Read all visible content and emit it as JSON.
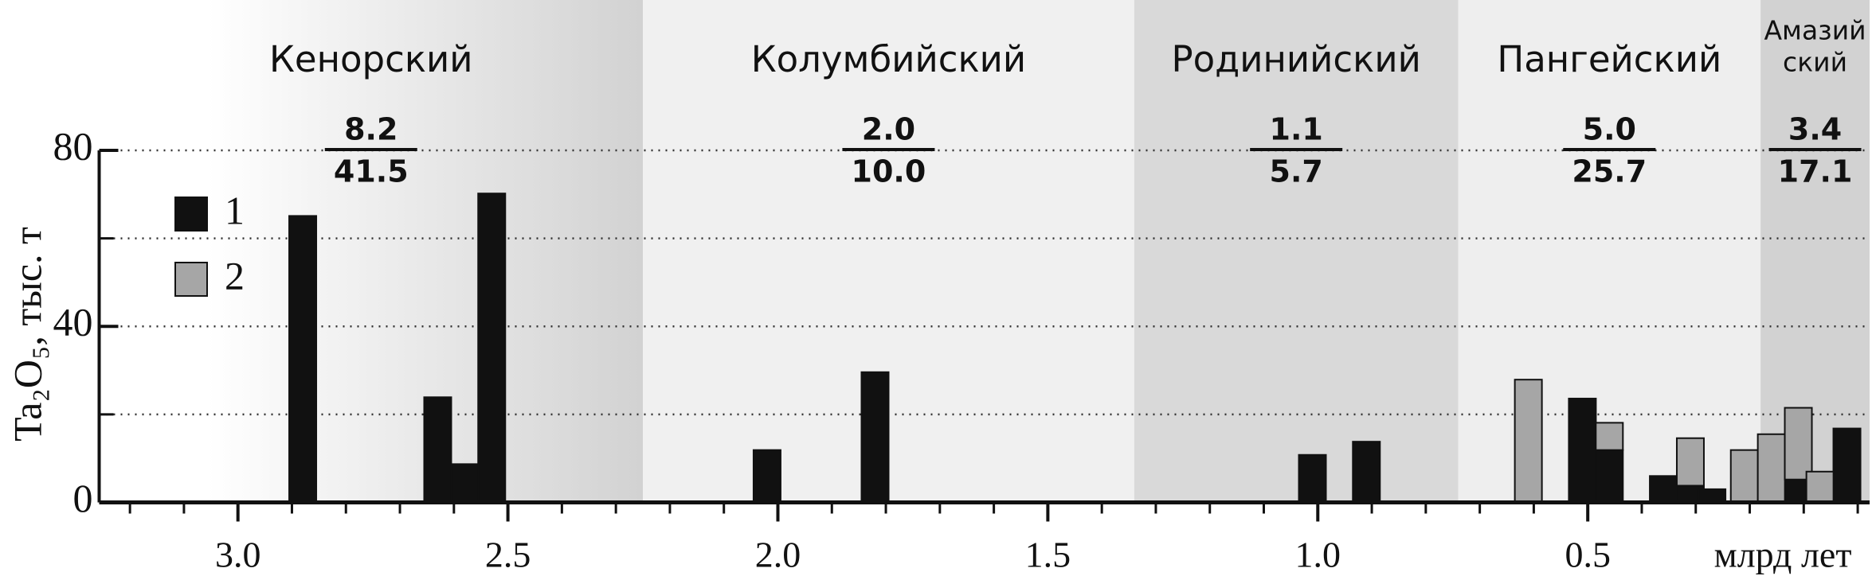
{
  "chart_data": {
    "type": "bar",
    "stacked": true,
    "y_label": "Ta₂O₅, тыс. т",
    "x_label": "млрд лет",
    "x": [
      2.88,
      2.63,
      2.58,
      2.53,
      2.02,
      1.82,
      1.01,
      0.91,
      0.61,
      0.51,
      0.46,
      0.36,
      0.31,
      0.27,
      0.21,
      0.16,
      0.11,
      0.07,
      0.02
    ],
    "series": [
      {
        "name": "1",
        "color": "#111111",
        "values": [
          65.1,
          23.9,
          8.7,
          70.2,
          11.9,
          29.6,
          10.8,
          13.8,
          0,
          23.6,
          11.9,
          6.0,
          3.8,
          3.0,
          0,
          0,
          5.2,
          0,
          16.8
        ]
      },
      {
        "name": "2",
        "color": "#a6a6a6",
        "values": [
          0,
          0,
          0,
          0,
          0,
          0,
          0,
          0,
          27.9,
          0,
          6.2,
          0,
          10.8,
          0,
          11.9,
          15.5,
          16.3,
          7.0,
          0
        ]
      }
    ],
    "xlim": [
      3.257,
      -0.022
    ],
    "ylim": [
      0,
      80
    ],
    "xticks": [
      {
        "value": 3,
        "label": "3.0"
      },
      2.5,
      {
        "value": 2,
        "label": "2.0"
      },
      1.5,
      {
        "value": 1,
        "label": "1.0"
      },
      0.5
    ],
    "minor_xticks": [
      3.2,
      3.1,
      2.9,
      2.8,
      2.7,
      2.6,
      2.4,
      2.3,
      2.2,
      2.1,
      1.9,
      1.8,
      1.7,
      1.6,
      1.4,
      1.3,
      1.2,
      1.1,
      0.9,
      0.8,
      0.7,
      0.6,
      0.4,
      0.3,
      0.2,
      0.1,
      0
    ],
    "yticks": [
      0,
      40,
      80
    ],
    "minor_yticks": [
      20,
      60
    ],
    "grid_lines": [
      20,
      40,
      60,
      80
    ],
    "legend": "upper left",
    "periods": [
      {
        "name": [
          "Кенорский"
        ],
        "start": 3.257,
        "end": 2.25,
        "color": "#d2d2d2",
        "gradient": true,
        "numerator": "8.2",
        "denominator": "41.5"
      },
      {
        "name": [
          "Колумбийский"
        ],
        "start": 2.25,
        "end": 1.34,
        "color": "#f0f0f0",
        "numerator": "2.0",
        "denominator": "10.0"
      },
      {
        "name": [
          "Родинийский"
        ],
        "start": 1.34,
        "end": 0.74,
        "color": "#d9d9d9",
        "numerator": "1.1",
        "denominator": "5.7"
      },
      {
        "name": [
          "Пангейский"
        ],
        "start": 0.74,
        "end": 0.18,
        "color": "#eeeeee",
        "numerator": "5.0",
        "denominator": "25.7"
      },
      {
        "name": [
          "Амазий",
          "ский"
        ],
        "start": 0.18,
        "end": -0.022,
        "color": "#d2d2d2",
        "numerator": "3.4",
        "denominator": "17.1"
      }
    ]
  }
}
